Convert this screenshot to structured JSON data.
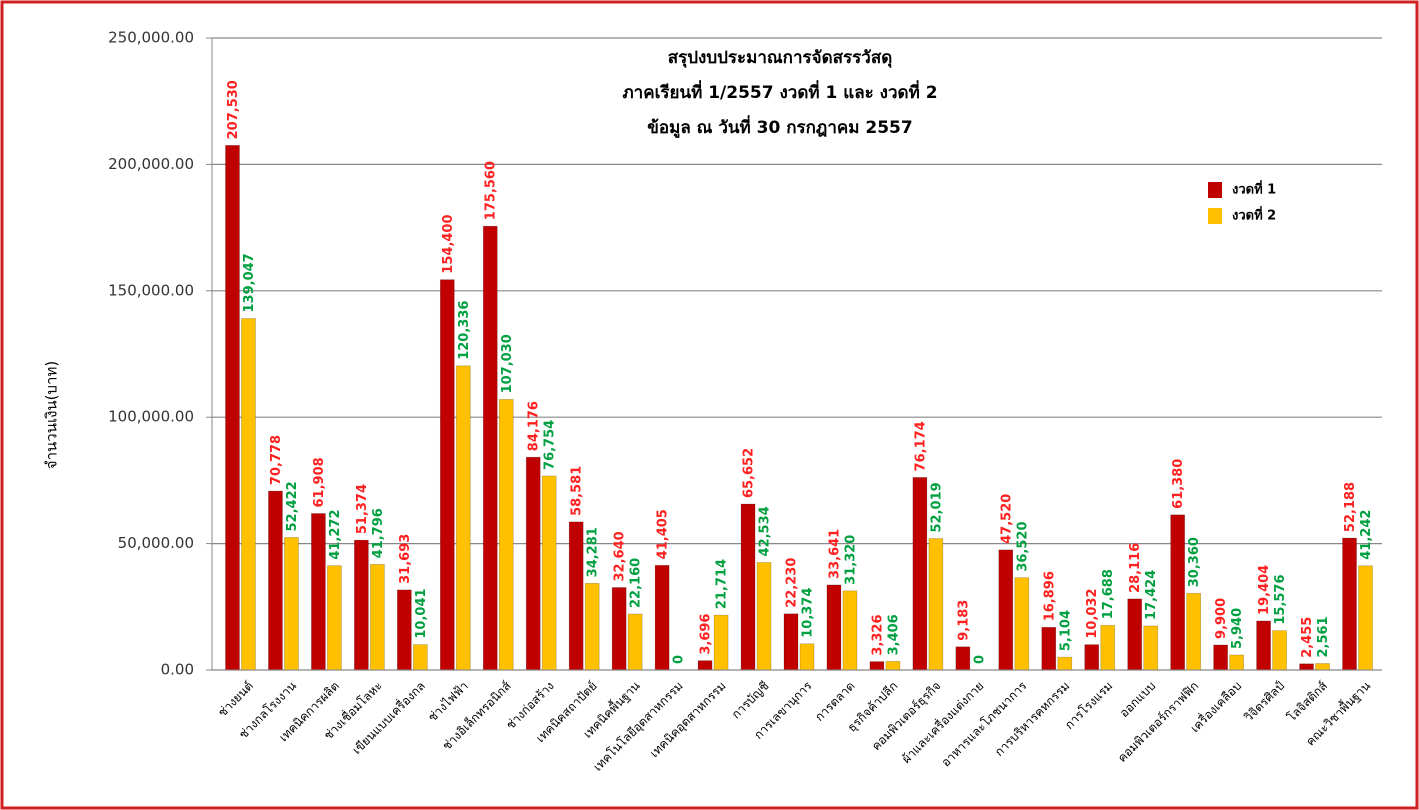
{
  "chart_data": {
    "type": "bar",
    "title": [
      "สรุปงบประมาณการจัดสรรวัสดุ",
      "ภาคเรียนที่ 1/2557 งวดที่ 1 และ งวดที่ 2",
      "ข้อมูล ณ วันที่ 30 กรกฎาคม  2557"
    ],
    "y_label": "จำนวนเงิน(บาท)",
    "categories": [
      "ช่างยนต์",
      "ช่างกลโรงงาน",
      "เทคนิคการผลิต",
      "ช่างเชื่อมโลหะ",
      "เขียนแบบเครื่องกล",
      "ช่างไฟฟ้า",
      "ช่างอิเล็กทรอนิกส์",
      "ช่างก่อสร้าง",
      "เทคนิคสถาปัตย์",
      "เทคนิคพื้นฐาน",
      "เทคโนโลยีอุตสาหกรรม",
      "เทคนิคอุตสาหกรรม",
      "การบัญชี",
      "การเลขานุการ",
      "การตลาด",
      "ธุรกิจค้าปลีก",
      "คอมพิวเตอร์ธุรกิจ",
      "ผ้าและเครื่องแต่งกาย",
      "อาหารและโภชนาการ",
      "การบริหารคหกรรม",
      "การโรงแรม",
      "ออกแบบ",
      "คอมพิวเตอร์กราฟฟิก",
      "เครื่องเคลือบ",
      "วิจิตรศิลป์",
      "โลจิสติกส์",
      "คณะวิชาพื้นฐาน"
    ],
    "series": [
      {
        "name": "งวดที่ 1",
        "color": "#c00000",
        "label_color": "#ff2020",
        "values": [
          207530,
          70778,
          61908,
          51374,
          31693,
          154400,
          175560,
          84176,
          58581,
          32640,
          41405,
          3696,
          65652,
          22230,
          33641,
          3326,
          76174,
          9183,
          47520,
          16896,
          10032,
          28116,
          61380,
          9900,
          19404,
          2455,
          52188
        ],
        "value_labels": [
          "207,530",
          "70,778",
          "61,908",
          "51,374",
          "31,693",
          "154,400",
          "175,560",
          "84,176",
          "58,581",
          "32,640",
          "41,405",
          "3,696",
          "65,652",
          "22,230",
          "33,641",
          "3,326",
          "76,174",
          "9,183",
          "47,520",
          "16,896",
          "10,032",
          "28,116",
          "61,380",
          "9,900",
          "19,404",
          "2,455",
          "52,188"
        ]
      },
      {
        "name": "งวดที่ 2",
        "color": "#ffc000",
        "label_color": "#00a040",
        "values": [
          139047,
          52422,
          41272,
          41796,
          10041,
          120336,
          107030,
          76754,
          34281,
          22160,
          0,
          21714,
          42534,
          10374,
          31320,
          3406,
          52019,
          0,
          36520,
          5104,
          17688,
          17424,
          30360,
          5940,
          15576,
          2561,
          41242
        ],
        "value_labels": [
          "139,047",
          "52,422",
          "41,272",
          "41,796",
          "10,041",
          "120,336",
          "107,030",
          "76,754",
          "34,281",
          "22,160",
          "0",
          "21,714",
          "42,534",
          "10,374",
          "31,320",
          "3,406",
          "52,019",
          "0",
          "36,520",
          "5,104",
          "17,688",
          "17,424",
          "30,360",
          "5,940",
          "15,576",
          "2,561",
          "41,242"
        ]
      }
    ],
    "ylim": [
      0,
      250000
    ],
    "yticks": [
      {
        "value": 0,
        "label": "0.00"
      },
      {
        "value": 50000,
        "label": "50,000.00"
      },
      {
        "value": 100000,
        "label": "100,000.00"
      },
      {
        "value": 150000,
        "label": "150,000.00"
      },
      {
        "value": 200000,
        "label": "200,000.00"
      },
      {
        "value": 250000,
        "label": "250,000.00"
      }
    ],
    "grid": true,
    "legend": "upper right"
  }
}
